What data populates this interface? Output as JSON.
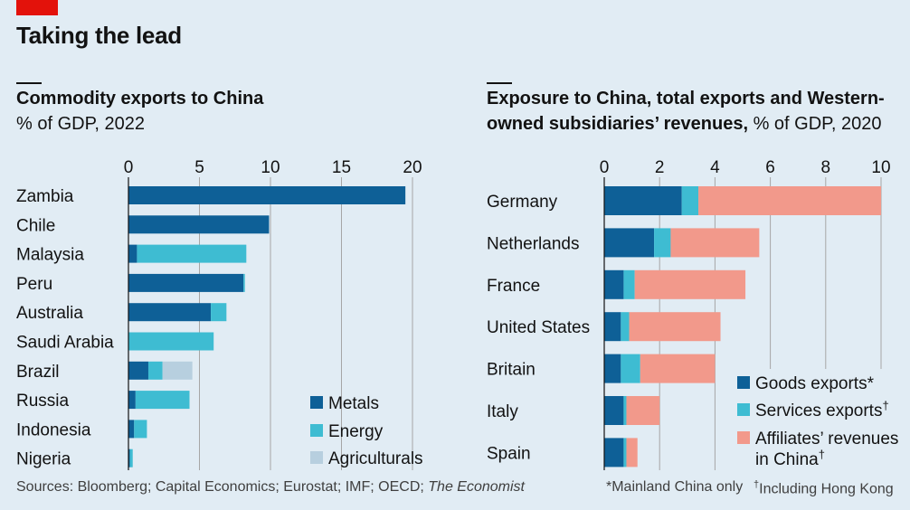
{
  "title": "Taking the lead",
  "colors": {
    "metals": "#0e6097",
    "energy": "#3ebcd2",
    "agri": "#b7cfdf",
    "goods": "#0e6097",
    "services": "#3ebcd2",
    "affiliates": "#f2998b",
    "grid": "#a6a6a6",
    "brand": "#e3120b"
  },
  "left": {
    "title": "Commodity exports to China",
    "subtitle": "% of GDP, 2022"
  },
  "right": {
    "title_line1": "Exposure to China, total exports and Western-",
    "title_line2": "owned subsidiaries’ revenues,",
    "subtitle": "% of GDP, 2020"
  },
  "footer": {
    "sources_prefix": "Sources: Bloomberg; Capital Economics; Eurostat; IMF; OECD; ",
    "sources_italic": "The Economist",
    "note1": "*Mainland China only",
    "note2_mark": "†",
    "note2": "Including Hong Kong"
  },
  "chart_data": [
    {
      "type": "bar",
      "orientation": "horizontal",
      "stacked": true,
      "title": "Commodity exports to China",
      "subtitle": "% of GDP, 2022",
      "categories": [
        "Zambia",
        "Chile",
        "Malaysia",
        "Peru",
        "Australia",
        "Saudi Arabia",
        "Brazil",
        "Russia",
        "Indonesia",
        "Nigeria"
      ],
      "series": [
        {
          "name": "Metals",
          "values": [
            19.5,
            9.9,
            0.6,
            8.1,
            5.8,
            0,
            1.4,
            0.5,
            0.4,
            0.1
          ]
        },
        {
          "name": "Energy",
          "values": [
            0,
            0,
            7.7,
            0.1,
            1.1,
            6.0,
            1.0,
            3.8,
            0.9,
            0.2
          ]
        },
        {
          "name": "Agriculturals",
          "values": [
            0,
            0,
            0,
            0,
            0,
            0,
            2.1,
            0,
            0,
            0
          ]
        }
      ],
      "xticks": [
        0,
        5,
        10,
        15,
        20
      ],
      "xlim": [
        0,
        20
      ],
      "legend": [
        "Metals",
        "Energy",
        "Agriculturals"
      ],
      "legend_position": "bottom-right"
    },
    {
      "type": "bar",
      "orientation": "horizontal",
      "stacked": true,
      "title": "Exposure to China, total exports and Western-owned subsidiaries’ revenues",
      "subtitle": "% of GDP, 2020",
      "categories": [
        "Germany",
        "Netherlands",
        "France",
        "United States",
        "Britain",
        "Italy",
        "Spain"
      ],
      "series": [
        {
          "name": "Goods exports*",
          "values": [
            2.8,
            1.8,
            0.7,
            0.6,
            0.6,
            0.7,
            0.7
          ]
        },
        {
          "name": "Services exports†",
          "values": [
            0.6,
            0.6,
            0.4,
            0.3,
            0.7,
            0.1,
            0.1
          ]
        },
        {
          "name": "Affiliates’ revenues in China†",
          "values": [
            6.6,
            3.2,
            4.0,
            3.3,
            2.7,
            1.2,
            0.4
          ]
        }
      ],
      "xticks": [
        0,
        2,
        4,
        6,
        8,
        10
      ],
      "xlim": [
        0,
        10
      ],
      "legend": [
        "Goods exports*",
        "Services exports",
        "Affiliates’ revenues",
        "in China"
      ],
      "legend_marks": [
        "",
        "†",
        "",
        "†"
      ],
      "legend_position": "bottom-right"
    }
  ]
}
